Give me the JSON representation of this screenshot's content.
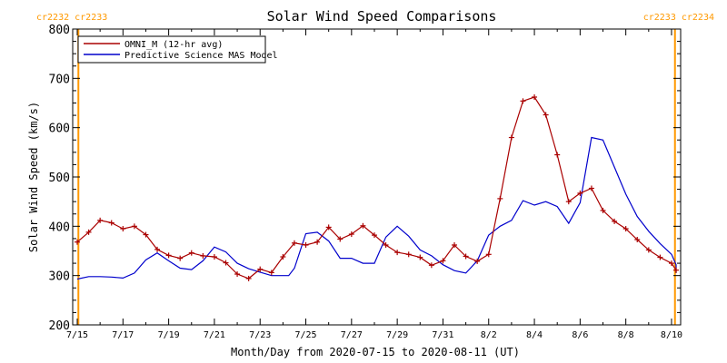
{
  "chart_data": {
    "type": "line",
    "title": "Solar Wind Speed Comparisons",
    "xlabel": "Month/Day from 2020-07-15 to 2020-08-11 (UT)",
    "ylabel": "Solar Wind Speed (km/s)",
    "ylim": [
      200,
      800
    ],
    "xlim": [
      0,
      26.2
    ],
    "y_ticks": [
      200,
      300,
      400,
      500,
      600,
      700,
      800
    ],
    "x_ticks": [
      {
        "x": 0,
        "label": "7/15"
      },
      {
        "x": 2,
        "label": "7/17"
      },
      {
        "x": 4,
        "label": "7/19"
      },
      {
        "x": 6,
        "label": "7/21"
      },
      {
        "x": 8,
        "label": "7/23"
      },
      {
        "x": 10,
        "label": "7/25"
      },
      {
        "x": 12,
        "label": "7/27"
      },
      {
        "x": 14,
        "label": "7/29"
      },
      {
        "x": 16,
        "label": "7/31"
      },
      {
        "x": 18,
        "label": "8/2"
      },
      {
        "x": 20,
        "label": "8/4"
      },
      {
        "x": 22,
        "label": "8/6"
      },
      {
        "x": 24,
        "label": "8/8"
      },
      {
        "x": 26,
        "label": "8/10"
      }
    ],
    "carrington_markers": [
      {
        "x": 0.05,
        "label": "cr2232 cr2233",
        "align": "left"
      },
      {
        "x": 26.15,
        "label": "cr2233 cr2234",
        "align": "right"
      }
    ],
    "grid": false,
    "legend_position": "top-left",
    "series": [
      {
        "name": "OMNI_M (12-hr avg)",
        "color": "#aa0000",
        "markers": true,
        "x": [
          0,
          0.5,
          1,
          1.5,
          2,
          2.5,
          3,
          3.5,
          4,
          4.5,
          5,
          5.5,
          6,
          6.5,
          7,
          7.5,
          8,
          8.5,
          9,
          9.5,
          10,
          10.5,
          11,
          11.5,
          12,
          12.5,
          13,
          13.5,
          14,
          14.5,
          15,
          15.5,
          16,
          16.5,
          17,
          17.5,
          18,
          18.5,
          19,
          19.5,
          20,
          20.5,
          21,
          21.5,
          22,
          22.5,
          23,
          23.5,
          24,
          24.5,
          25,
          25.5,
          26,
          26.5
        ],
        "y": [
          368,
          388,
          412,
          407,
          395,
          400,
          383,
          353,
          341,
          335,
          346,
          340,
          338,
          326,
          303,
          294,
          313,
          306,
          338,
          366,
          362,
          368,
          398,
          374,
          384,
          401,
          382,
          362,
          347,
          343,
          337,
          321,
          330,
          362,
          339,
          329,
          343,
          456,
          580,
          654,
          662,
          626,
          545,
          450,
          467,
          477,
          432,
          410,
          395,
          373,
          352,
          337,
          325,
          311
        ]
      },
      {
        "name": "Predictive Science MAS Model",
        "color": "#0000cc",
        "markers": false,
        "x": [
          0,
          0.5,
          1,
          1.5,
          2,
          2.5,
          3,
          3.5,
          4,
          4.5,
          5,
          5.5,
          6,
          6.5,
          7,
          7.5,
          8,
          8.5,
          9,
          9.25,
          9.5,
          10,
          10.5,
          11,
          11.5,
          12,
          12.5,
          13,
          13.5,
          14,
          14.5,
          15,
          15.5,
          16,
          16.5,
          17,
          17.5,
          18,
          18.5,
          19,
          19.5,
          20,
          20.5,
          21,
          21.5,
          22,
          22.5,
          23,
          23.5,
          24,
          24.5,
          25,
          25.5,
          26,
          26.5,
          27
        ],
        "y": [
          293,
          298,
          298,
          297,
          295,
          305,
          332,
          346,
          330,
          315,
          312,
          330,
          358,
          348,
          325,
          314,
          307,
          300,
          300,
          300,
          315,
          385,
          388,
          370,
          335,
          335,
          325,
          325,
          378,
          400,
          380,
          352,
          340,
          322,
          310,
          305,
          330,
          382,
          400,
          412,
          452,
          443,
          450,
          440,
          406,
          448,
          580,
          575,
          520,
          465,
          420,
          390,
          365,
          343,
          322,
          305
        ]
      }
    ]
  }
}
